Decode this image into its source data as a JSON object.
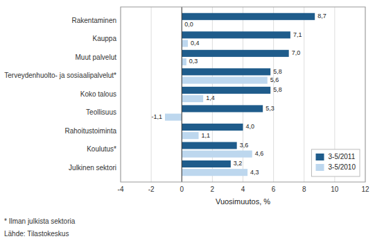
{
  "chart_data": {
    "type": "bar",
    "orientation": "horizontal",
    "categories": [
      "Julkinen sektori",
      "Koulutus*",
      "Rahoitustoiminta",
      "Teollisuus",
      "Koko talous",
      "Terveydenhuolto- ja sosiaalipalvelut*",
      "Muut palvelut",
      "Kauppa",
      "Rakentaminen"
    ],
    "series": [
      {
        "name": "3-5/2011",
        "color": "#1F5C8B",
        "values": [
          3.2,
          3.6,
          4.0,
          5.3,
          5.8,
          5.8,
          7.0,
          7.1,
          8.7
        ],
        "value_labels": [
          "3,2",
          "3,6",
          "4,0",
          "5,3",
          "5,8",
          "5,8",
          "7,0",
          "7,1",
          "8,7"
        ]
      },
      {
        "name": "3-5/2010",
        "color": "#BDD7EE",
        "values": [
          4.3,
          4.6,
          1.1,
          -1.1,
          1.4,
          5.6,
          0.3,
          0.4,
          0.0
        ],
        "value_labels": [
          "4,3",
          "4,6",
          "1,1",
          "-1,1",
          "1,4",
          "5,6",
          "0,3",
          "0,4",
          "0,0"
        ]
      }
    ],
    "xlabel": "Vuosimuutos, %",
    "xlim": [
      -4,
      12
    ],
    "xticks": [
      -4,
      -2,
      0,
      2,
      4,
      6,
      8,
      10,
      12
    ],
    "grid": true,
    "legend": "lower right",
    "data_labels": true,
    "annotations": [
      "* Ilman julkista sektoria",
      "Lähde: Tilastokeskus"
    ]
  }
}
